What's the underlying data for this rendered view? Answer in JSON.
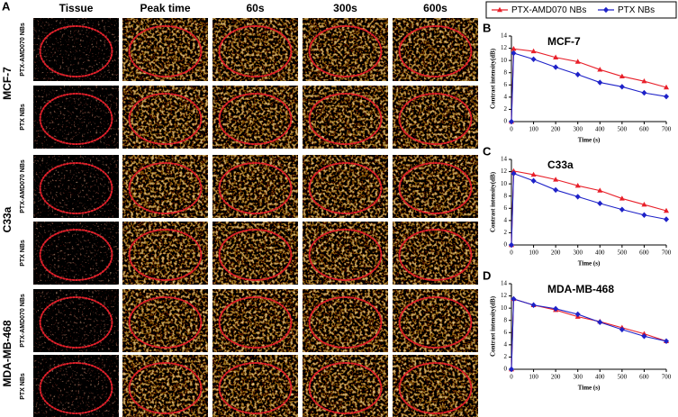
{
  "figure_label": "A",
  "column_headers": [
    "Tissue",
    "Peak time",
    "60s",
    "300s",
    "600s"
  ],
  "row_groups": [
    "MCF-7",
    "C33a",
    "MDA-MB-468"
  ],
  "row_labels": [
    "PTX-AMD070 NBs",
    "PTX NBs"
  ],
  "chart_data": [
    {
      "type": "line",
      "panel": "B",
      "title": "MCF-7",
      "x_label": "Time (s)",
      "y_label": "Contrast intensity(dB)",
      "x": [
        0,
        10,
        100,
        200,
        300,
        400,
        500,
        600,
        700
      ],
      "series": [
        {
          "name": "PTX-AMD070 NBs",
          "color": "#e8202a",
          "marker": "triangle",
          "values": [
            0,
            11.9,
            11.5,
            10.5,
            9.8,
            8.5,
            7.4,
            6.6,
            5.6
          ]
        },
        {
          "name": "PTX NBs",
          "color": "#1e22c8",
          "marker": "diamond",
          "values": [
            0,
            11.2,
            10.2,
            8.9,
            7.7,
            6.4,
            5.7,
            4.7,
            4.1
          ]
        }
      ],
      "xlim": [
        0,
        700
      ],
      "xticks": [
        0,
        100,
        200,
        300,
        400,
        500,
        600,
        700
      ],
      "ylim": [
        0,
        14
      ],
      "yticks": [
        0,
        2,
        4,
        6,
        8,
        10,
        12,
        14
      ]
    },
    {
      "type": "line",
      "panel": "C",
      "title": "C33a",
      "x_label": "Time (s)",
      "y_label": "Contrast intensity(dB)",
      "x": [
        0,
        10,
        100,
        200,
        300,
        400,
        500,
        600,
        700
      ],
      "series": [
        {
          "color": "#e8202a",
          "marker": "triangle",
          "values": [
            0,
            12.1,
            11.5,
            10.7,
            9.7,
            8.9,
            7.6,
            6.6,
            5.6
          ]
        },
        {
          "color": "#1e22c8",
          "marker": "diamond",
          "values": [
            0,
            11.7,
            10.5,
            9.0,
            7.9,
            6.8,
            5.8,
            4.9,
            4.2
          ]
        }
      ],
      "xlim": [
        0,
        700
      ],
      "xticks": [
        0,
        100,
        200,
        300,
        400,
        500,
        600,
        700
      ],
      "ylim": [
        0,
        14
      ],
      "yticks": [
        0,
        2,
        4,
        6,
        8,
        10,
        12,
        14
      ]
    },
    {
      "type": "line",
      "panel": "D",
      "title": "MDA-MB-468",
      "x_label": "Time (s)",
      "y_label": "Contrast intensity(dB)",
      "x": [
        0,
        10,
        100,
        200,
        300,
        400,
        500,
        600,
        700
      ],
      "series": [
        {
          "color": "#e8202a",
          "marker": "triangle",
          "values": [
            0,
            11.5,
            10.5,
            9.7,
            8.6,
            7.8,
            6.8,
            5.8,
            4.6
          ]
        },
        {
          "color": "#1e22c8",
          "marker": "diamond",
          "values": [
            0,
            11.5,
            10.5,
            9.9,
            9.0,
            7.7,
            6.5,
            5.4,
            4.6
          ]
        }
      ],
      "xlim": [
        0,
        700
      ],
      "xticks": [
        0,
        100,
        200,
        300,
        400,
        500,
        600,
        700
      ],
      "ylim": [
        0,
        14
      ],
      "yticks": [
        0,
        2,
        4,
        6,
        8,
        10,
        12,
        14
      ]
    }
  ]
}
